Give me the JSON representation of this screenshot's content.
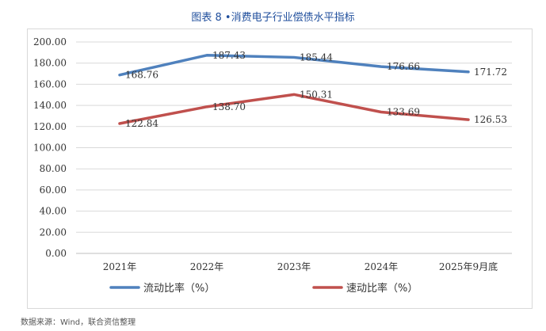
{
  "chart_data": {
    "type": "line",
    "title": "图表 8 •消费电子行业偿债水平指标",
    "categories": [
      "2021年",
      "2022年",
      "2023年",
      "2024年",
      "2025年9月底"
    ],
    "series": [
      {
        "name": "流动比率（%）",
        "color": "#4f81bd",
        "values": [
          168.76,
          187.43,
          185.44,
          176.66,
          171.72
        ]
      },
      {
        "name": "速动比率（%）",
        "color": "#c0504d",
        "values": [
          122.84,
          138.7,
          150.31,
          133.69,
          126.53
        ]
      }
    ],
    "ylim": [
      0,
      200
    ],
    "ystep": 20,
    "ytick_labels": [
      "0.00",
      "20.00",
      "40.00",
      "60.00",
      "80.00",
      "100.00",
      "120.00",
      "140.00",
      "160.00",
      "180.00",
      "200.00"
    ],
    "xlabel": "",
    "ylabel": "",
    "grid": true,
    "legend_position": "bottom"
  },
  "source": "数据来源：Wind，联合资信整理"
}
